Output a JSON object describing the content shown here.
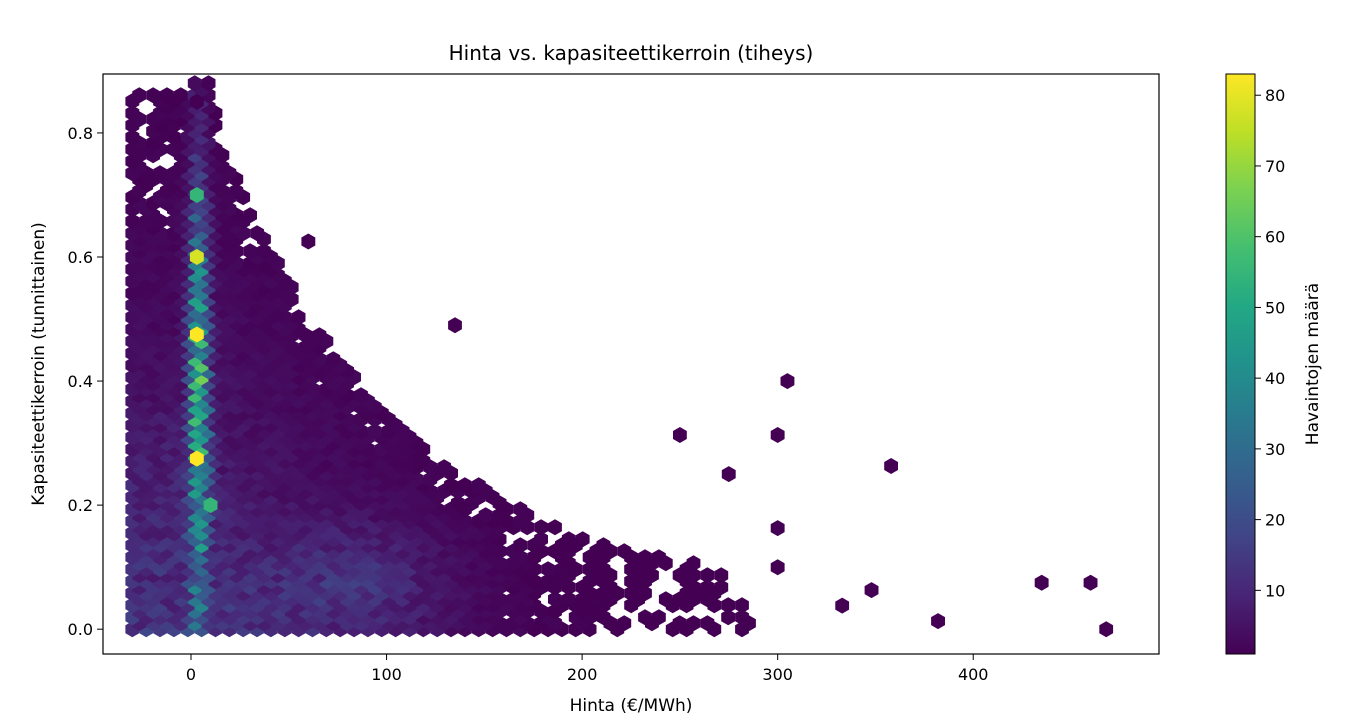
{
  "chart_data": {
    "type": "heatmap",
    "subtype": "hexbin",
    "title": "Hinta vs. kapasiteettikerroin (tiheys)",
    "xlabel": "Hinta (€/MWh)",
    "ylabel": "Kapasiteettikerroin (tunnittainen)",
    "xlim": [
      -45,
      495
    ],
    "ylim": [
      -0.04,
      0.895
    ],
    "xticks": [
      0,
      100,
      200,
      300,
      400
    ],
    "yticks": [
      0.0,
      0.2,
      0.4,
      0.6,
      0.8
    ],
    "xtick_labels": [
      "0",
      "100",
      "200",
      "300",
      "400"
    ],
    "ytick_labels": [
      "0.0",
      "0.2",
      "0.4",
      "0.6",
      "0.8"
    ],
    "colormap": "viridis",
    "colorbar": {
      "label": "Havaintojen määrä",
      "range": [
        1,
        83
      ],
      "ticks": [
        10,
        20,
        30,
        40,
        50,
        60,
        70,
        80
      ],
      "tick_labels": [
        "10",
        "20",
        "30",
        "40",
        "50",
        "60",
        "70",
        "80"
      ]
    },
    "grid": false,
    "hex_gridsize": {
      "dx": 6.6,
      "dy": 0.025
    },
    "highlights": [
      {
        "x": 3,
        "y": 0.6,
        "count": 78
      },
      {
        "x": 3,
        "y": 0.475,
        "count": 83
      },
      {
        "x": 3,
        "y": 0.275,
        "count": 83
      },
      {
        "x": 3,
        "y": 0.7,
        "count": 55
      },
      {
        "x": 10,
        "y": 0.2,
        "count": 55
      }
    ],
    "outliers": [
      {
        "x": 3,
        "y": 0.85,
        "count": 1
      },
      {
        "x": 60,
        "y": 0.625,
        "count": 1
      },
      {
        "x": 135,
        "y": 0.49,
        "count": 1
      },
      {
        "x": 305,
        "y": 0.4,
        "count": 1
      },
      {
        "x": 300,
        "y": 0.313,
        "count": 1
      },
      {
        "x": 250,
        "y": 0.313,
        "count": 1
      },
      {
        "x": 358,
        "y": 0.263,
        "count": 1
      },
      {
        "x": 275,
        "y": 0.25,
        "count": 1
      },
      {
        "x": 300,
        "y": 0.163,
        "count": 1
      },
      {
        "x": 300,
        "y": 0.1,
        "count": 1
      },
      {
        "x": 348,
        "y": 0.063,
        "count": 1
      },
      {
        "x": 435,
        "y": 0.075,
        "count": 1
      },
      {
        "x": 460,
        "y": 0.075,
        "count": 1
      },
      {
        "x": 382,
        "y": 0.013,
        "count": 1
      },
      {
        "x": 468,
        "y": 0.0,
        "count": 1
      },
      {
        "x": 333,
        "y": 0.038,
        "count": 1
      }
    ]
  }
}
